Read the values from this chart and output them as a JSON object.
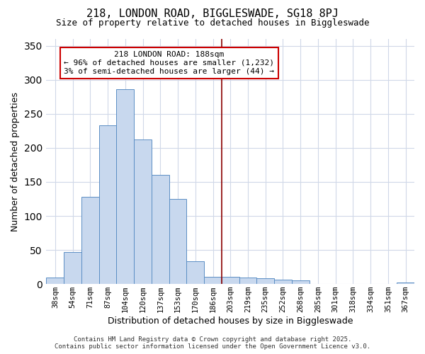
{
  "title1": "218, LONDON ROAD, BIGGLESWADE, SG18 8PJ",
  "title2": "Size of property relative to detached houses in Biggleswade",
  "xlabel": "Distribution of detached houses by size in Biggleswade",
  "ylabel": "Number of detached properties",
  "categories": [
    "38sqm",
    "54sqm",
    "71sqm",
    "87sqm",
    "104sqm",
    "120sqm",
    "137sqm",
    "153sqm",
    "170sqm",
    "186sqm",
    "203sqm",
    "219sqm",
    "235sqm",
    "252sqm",
    "268sqm",
    "285sqm",
    "301sqm",
    "318sqm",
    "334sqm",
    "351sqm",
    "367sqm"
  ],
  "values": [
    10,
    47,
    128,
    233,
    286,
    212,
    160,
    125,
    33,
    11,
    11,
    10,
    9,
    6,
    5,
    0,
    0,
    0,
    0,
    0,
    2
  ],
  "bar_color": "#c8d8ee",
  "bar_edge_color": "#5b8ec4",
  "vline_x": 9.5,
  "vline_color": "#8b0000",
  "annotation_text": "218 LONDON ROAD: 188sqm\n← 96% of detached houses are smaller (1,232)\n3% of semi-detached houses are larger (44) →",
  "annotation_box_color": "#ffffff",
  "annotation_box_edge": "#cc0000",
  "ylim": [
    0,
    360
  ],
  "yticks": [
    0,
    50,
    100,
    150,
    200,
    250,
    300,
    350
  ],
  "background_color": "#ffffff",
  "grid_color": "#d0d8e8",
  "footer": "Contains HM Land Registry data © Crown copyright and database right 2025.\nContains public sector information licensed under the Open Government Licence v3.0."
}
